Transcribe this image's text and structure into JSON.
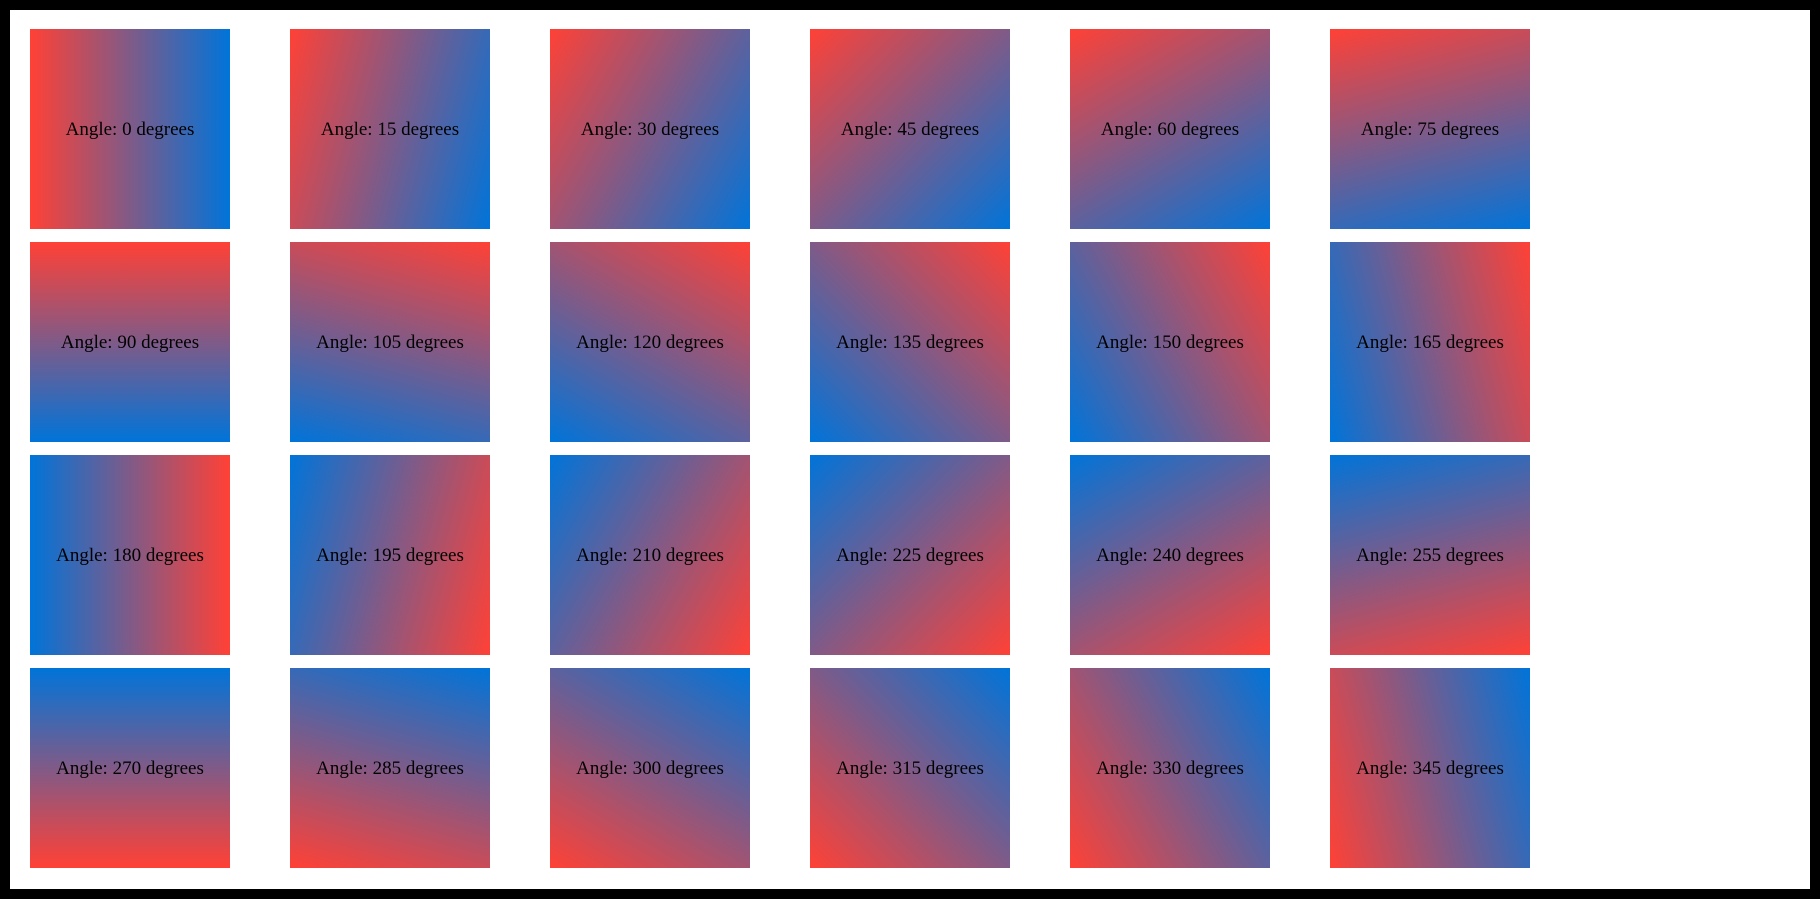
{
  "page": {
    "border_color": "#000000",
    "background_color": "#ffffff"
  },
  "grid": {
    "columns": 6,
    "rows": 4,
    "angle_step_degrees": 15,
    "gradient": {
      "start_color": "#FF4136",
      "end_color": "#0074D9"
    },
    "tiles": [
      {
        "label": "Angle: 0 degrees",
        "angle_degrees": 0
      },
      {
        "label": "Angle: 15 degrees",
        "angle_degrees": 15
      },
      {
        "label": "Angle: 30 degrees",
        "angle_degrees": 30
      },
      {
        "label": "Angle: 45 degrees",
        "angle_degrees": 45
      },
      {
        "label": "Angle: 60 degrees",
        "angle_degrees": 60
      },
      {
        "label": "Angle: 75 degrees",
        "angle_degrees": 75
      },
      {
        "label": "Angle: 90 degrees",
        "angle_degrees": 90
      },
      {
        "label": "Angle: 105 degrees",
        "angle_degrees": 105
      },
      {
        "label": "Angle: 120 degrees",
        "angle_degrees": 120
      },
      {
        "label": "Angle: 135 degrees",
        "angle_degrees": 135
      },
      {
        "label": "Angle: 150 degrees",
        "angle_degrees": 150
      },
      {
        "label": "Angle: 165 degrees",
        "angle_degrees": 165
      },
      {
        "label": "Angle: 180 degrees",
        "angle_degrees": 180
      },
      {
        "label": "Angle: 195 degrees",
        "angle_degrees": 195
      },
      {
        "label": "Angle: 210 degrees",
        "angle_degrees": 210
      },
      {
        "label": "Angle: 225 degrees",
        "angle_degrees": 225
      },
      {
        "label": "Angle: 240 degrees",
        "angle_degrees": 240
      },
      {
        "label": "Angle: 255 degrees",
        "angle_degrees": 255
      },
      {
        "label": "Angle: 270 degrees",
        "angle_degrees": 270
      },
      {
        "label": "Angle: 285 degrees",
        "angle_degrees": 285
      },
      {
        "label": "Angle: 300 degrees",
        "angle_degrees": 300
      },
      {
        "label": "Angle: 315 degrees",
        "angle_degrees": 315
      },
      {
        "label": "Angle: 330 degrees",
        "angle_degrees": 330
      },
      {
        "label": "Angle: 345 degrees",
        "angle_degrees": 345
      }
    ]
  }
}
